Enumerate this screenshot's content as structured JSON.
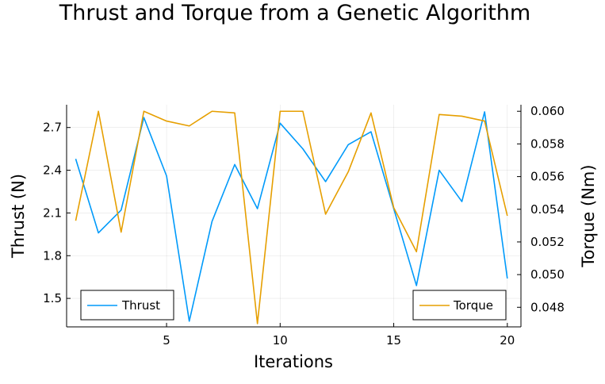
{
  "chart_data": {
    "type": "line",
    "title": "Thrust and Torque from a Genetic Algorithm",
    "xlabel": "Iterations",
    "ylabel_left": "Thrust (N)",
    "ylabel_right": "Torque (Nm)",
    "x": [
      1,
      2,
      3,
      4,
      5,
      6,
      7,
      8,
      9,
      10,
      11,
      12,
      13,
      14,
      15,
      16,
      17,
      18,
      19,
      20
    ],
    "xlim": [
      0.6,
      20.6
    ],
    "xticks": [
      5,
      10,
      15,
      20
    ],
    "ylim_left": [
      1.3,
      2.86
    ],
    "yticks_left": [
      "1.5",
      "1.8",
      "2.1",
      "2.4",
      "2.7"
    ],
    "ylim_right": [
      0.0468,
      0.0604
    ],
    "yticks_right": [
      "0.048",
      "0.050",
      "0.052",
      "0.054",
      "0.056",
      "0.058",
      "0.060"
    ],
    "grid": true,
    "series": [
      {
        "name": "Thrust",
        "axis": "left",
        "color": "#009AFA",
        "legend": "bottom-left",
        "values": [
          2.48,
          1.96,
          2.12,
          2.77,
          2.36,
          1.34,
          2.04,
          2.44,
          2.13,
          2.73,
          2.55,
          2.32,
          2.58,
          2.67,
          2.13,
          1.59,
          2.4,
          2.18,
          2.81,
          1.64
        ]
      },
      {
        "name": "Torque",
        "axis": "right",
        "color": "#E69F00",
        "legend": "bottom-right",
        "values": [
          0.0533,
          0.06,
          0.0526,
          0.06,
          0.0594,
          0.0591,
          0.06,
          0.0599,
          0.047,
          0.06,
          0.06,
          0.0537,
          0.0563,
          0.0599,
          0.0541,
          0.0514,
          0.0598,
          0.0597,
          0.0594,
          0.0536
        ]
      }
    ]
  }
}
